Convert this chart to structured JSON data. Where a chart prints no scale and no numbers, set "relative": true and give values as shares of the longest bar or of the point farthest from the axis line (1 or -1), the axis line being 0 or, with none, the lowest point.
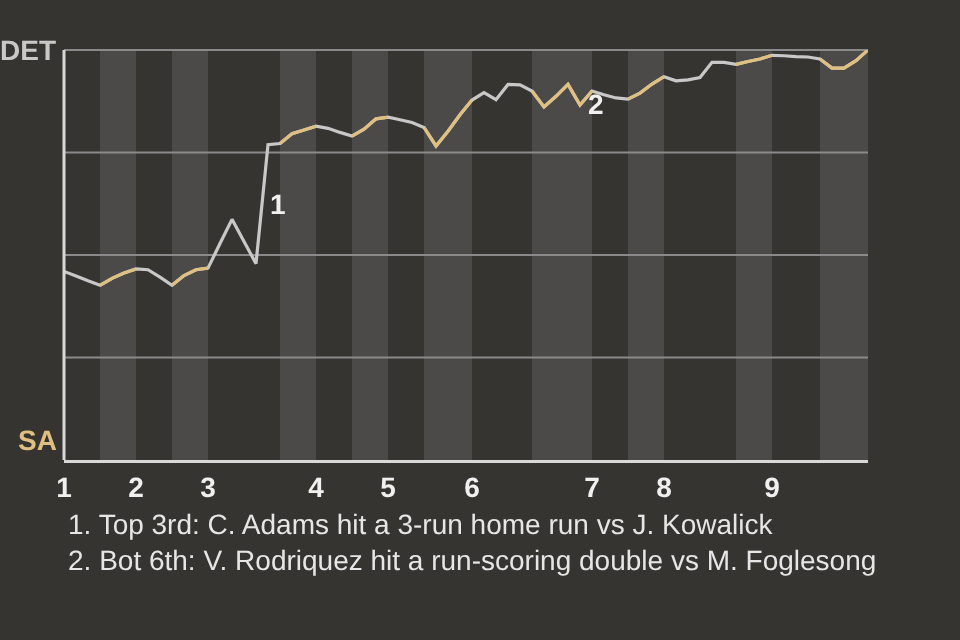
{
  "chart_data": {
    "type": "line",
    "relative": true,
    "categories": [
      "1",
      null,
      null,
      null,
      null,
      null,
      "2",
      null,
      null,
      null,
      null,
      null,
      "3",
      null,
      null,
      null,
      null,
      null,
      null,
      null,
      null,
      "4",
      null,
      null,
      null,
      null,
      null,
      "5",
      null,
      null,
      null,
      null,
      null,
      null,
      "6",
      null,
      null,
      null,
      null,
      null,
      null,
      null,
      null,
      null,
      "7",
      null,
      null,
      null,
      null,
      null,
      "8",
      null,
      null,
      null,
      null,
      null,
      null,
      null,
      null,
      "9",
      null,
      null,
      null,
      null,
      null,
      null,
      null,
      null
    ],
    "grid": "y",
    "marker": "none",
    "line_style": "solid",
    "series": [
      {
        "color": "#c8c8c8",
        "values": [
          0.46,
          0.449,
          0.437,
          0.426,
          0.443,
          0.456,
          0.466,
          0.464,
          0.446,
          0.426,
          0.45,
          0.464,
          0.468,
          0.528,
          0.587,
          0.533,
          0.479,
          0.769,
          0.772,
          0.796,
          0.805,
          0.814,
          0.809,
          0.799,
          0.79,
          0.807,
          0.832,
          0.836,
          0.83,
          0.823,
          0.811,
          0.766,
          0.802,
          0.842,
          0.878,
          0.896,
          0.879,
          0.916,
          0.915,
          0.9,
          0.861,
          0.887,
          0.916,
          0.866,
          0.9,
          0.891,
          0.883,
          0.88,
          0.895,
          0.917,
          0.935,
          0.925,
          0.927,
          0.933,
          0.97,
          0.97,
          0.965,
          0.972,
          0.978,
          0.987,
          0.986,
          0.984,
          0.983,
          0.978,
          0.956,
          0.956,
          0.974,
          1
        ]
      },
      {
        "color": "#dfc080",
        "values": [
          null,
          null,
          null,
          0.426,
          0.443,
          0.456,
          0.466,
          null,
          null,
          0.426,
          0.45,
          0.464,
          0.468,
          null,
          null,
          null,
          null,
          null,
          0.772,
          0.796,
          0.805,
          0.814,
          null,
          null,
          0.79,
          0.807,
          0.832,
          0.836,
          null,
          null,
          0.811,
          0.766,
          0.802,
          0.842,
          0.878,
          null,
          null,
          null,
          null,
          0.9,
          0.861,
          0.887,
          0.916,
          0.866,
          0.9,
          null,
          null,
          0.88,
          0.895,
          0.917,
          0.935,
          null,
          null,
          null,
          null,
          null,
          0.965,
          0.972,
          0.978,
          0.987,
          null,
          null,
          null,
          0.978,
          0.956,
          0.956,
          0.974,
          1
        ]
      }
    ],
    "annotations": [
      "DET",
      "SA",
      "1",
      {
        "text": "2",
        "y": 0.87
      },
      "1. Top 3rd: C. Adams hit a 3-run home run vs J. Kowalick",
      "2. Bot 6th: V. Rodriquez hit a run-scoring double vs M. Foglesong"
    ]
  }
}
